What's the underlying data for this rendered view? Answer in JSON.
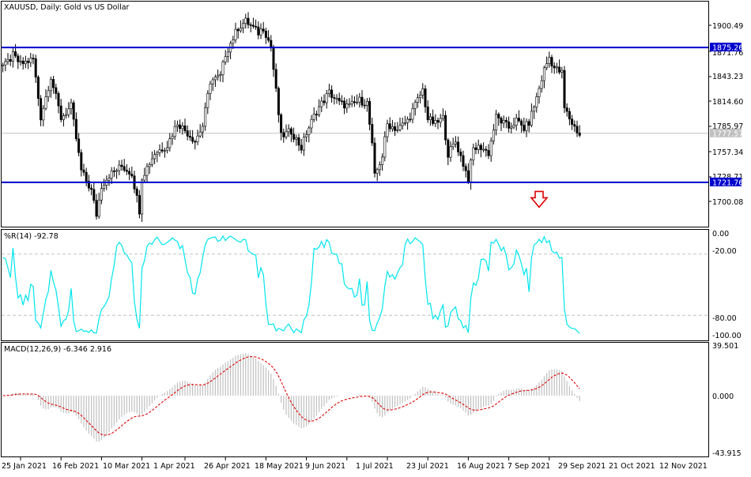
{
  "colors": {
    "background": "#ffffff",
    "frame": "#000000",
    "candle_up": "#000000",
    "candle_down": "#000000",
    "level_line": "#0000cc",
    "level_label_bg": "#0000cc",
    "level_label_text": "#ffffff",
    "price_line": "#c0c0c0",
    "williams_line": "#00e5ee",
    "histogram": "#c0c0c0",
    "signal_line": "#dd0000",
    "arrow": "#dd0000",
    "grid_dash": "#c0c0c0",
    "text": "#000000"
  },
  "chart_data": [
    {
      "type": "candlestick",
      "title": "XAUUSD, Daily:  Gold vs US Dollar",
      "y_ticks": [
        "1900.49",
        "1871.76",
        "1843.23",
        "1814.60",
        "1785.97",
        "1757.34",
        "1728.71",
        "1700.08"
      ],
      "ylim": [
        1678,
        1925
      ],
      "levels": [
        {
          "value": 1875.26,
          "label": "1875.26"
        },
        {
          "value": 1721.76,
          "label": "1721.76"
        }
      ],
      "current_price": {
        "value": 1777.57,
        "label": "1777.57"
      },
      "arrow": {
        "direction": "down",
        "date": "2021-11-08",
        "value": 1706
      },
      "x_tick_dates": [
        "2021-01-25",
        "2021-02-16",
        "2021-03-10",
        "2021-04-01",
        "2021-04-26",
        "2021-05-18",
        "2021-06-09",
        "2021-07-01",
        "2021-07-23",
        "2021-08-16",
        "2021-09-07",
        "2021-09-29",
        "2021-10-21",
        "2021-11-12"
      ],
      "x_tick_labels": [
        "25 Jan 2021",
        "16 Feb 2021",
        "10 Mar 2021",
        "1 Apr 2021",
        "26 Apr 2021",
        "18 May 2021",
        "9 Jun 2021",
        "1 Jul 2021",
        "23 Jul 2021",
        "16 Aug 2021",
        "7 Sep 2021",
        "29 Sep 2021",
        "21 Oct 2021",
        "12 Nov 2021"
      ],
      "close_anchors": [
        [
          "2021-01-15",
          1855
        ],
        [
          "2021-01-20",
          1866
        ],
        [
          "2021-01-25",
          1856
        ],
        [
          "2021-02-01",
          1862
        ],
        [
          "2021-02-04",
          1796
        ],
        [
          "2021-02-10",
          1842
        ],
        [
          "2021-02-16",
          1795
        ],
        [
          "2021-02-22",
          1808
        ],
        [
          "2021-02-26",
          1735
        ],
        [
          "2021-03-04",
          1712
        ],
        [
          "2021-03-08",
          1685
        ],
        [
          "2021-03-10",
          1718
        ],
        [
          "2021-03-15",
          1730
        ],
        [
          "2021-03-22",
          1740
        ],
        [
          "2021-03-26",
          1732
        ],
        [
          "2021-03-31",
          1690
        ],
        [
          "2021-04-01",
          1728
        ],
        [
          "2021-04-08",
          1755
        ],
        [
          "2021-04-15",
          1764
        ],
        [
          "2021-04-21",
          1790
        ],
        [
          "2021-04-26",
          1781
        ],
        [
          "2021-04-30",
          1769
        ],
        [
          "2021-05-05",
          1786
        ],
        [
          "2021-05-10",
          1837
        ],
        [
          "2021-05-14",
          1842
        ],
        [
          "2021-05-18",
          1868
        ],
        [
          "2021-05-25",
          1898
        ],
        [
          "2021-05-28",
          1905
        ],
        [
          "2021-06-01",
          1900
        ],
        [
          "2021-06-04",
          1892
        ],
        [
          "2021-06-08",
          1898
        ],
        [
          "2021-06-11",
          1876
        ],
        [
          "2021-06-17",
          1774
        ],
        [
          "2021-06-23",
          1780
        ],
        [
          "2021-06-29",
          1761
        ],
        [
          "2021-07-01",
          1778
        ],
        [
          "2021-07-07",
          1803
        ],
        [
          "2021-07-14",
          1824
        ],
        [
          "2021-07-20",
          1812
        ],
        [
          "2021-07-26",
          1808
        ],
        [
          "2021-07-30",
          1815
        ],
        [
          "2021-08-04",
          1812
        ],
        [
          "2021-08-06",
          1763
        ],
        [
          "2021-08-09",
          1728
        ],
        [
          "2021-08-12",
          1752
        ],
        [
          "2021-08-16",
          1788
        ],
        [
          "2021-08-20",
          1782
        ],
        [
          "2021-08-26",
          1792
        ],
        [
          "2021-09-03",
          1827
        ],
        [
          "2021-09-07",
          1794
        ],
        [
          "2021-09-10",
          1788
        ],
        [
          "2021-09-15",
          1795
        ],
        [
          "2021-09-17",
          1754
        ],
        [
          "2021-09-22",
          1768
        ],
        [
          "2021-09-29",
          1726
        ],
        [
          "2021-10-01",
          1760
        ],
        [
          "2021-10-06",
          1762
        ],
        [
          "2021-10-11",
          1755
        ],
        [
          "2021-10-14",
          1796
        ],
        [
          "2021-10-21",
          1784
        ],
        [
          "2021-10-26",
          1792
        ],
        [
          "2021-10-29",
          1783
        ],
        [
          "2021-11-02",
          1790
        ],
        [
          "2021-11-05",
          1818
        ],
        [
          "2021-11-10",
          1850
        ],
        [
          "2021-11-12",
          1864
        ],
        [
          "2021-11-16",
          1852
        ],
        [
          "2021-11-19",
          1846
        ],
        [
          "2021-11-22",
          1806
        ],
        [
          "2021-11-25",
          1789
        ],
        [
          "2021-11-30",
          1776
        ]
      ]
    },
    {
      "type": "line",
      "title": "%R(14) -92.78",
      "y_ticks": [
        "0.00",
        "-20.00",
        "-80.00",
        "-100.00"
      ],
      "ylim": [
        -100,
        0
      ],
      "dashed_levels": [
        -20,
        -80
      ],
      "series": [
        {
          "derived_from": "price_high_low_close",
          "period": 14
        }
      ]
    },
    {
      "type": "bar",
      "title": "MACD(12,26,9) -6.346 2.916",
      "y_ticks": [
        "39.501",
        "0.000",
        "-43.915"
      ],
      "ylim": [
        -43.915,
        39.501
      ],
      "series": [
        {
          "kind": "histogram",
          "params": [
            12,
            26
          ]
        },
        {
          "kind": "signal",
          "style": "dashed",
          "params": [
            9
          ]
        }
      ]
    }
  ]
}
